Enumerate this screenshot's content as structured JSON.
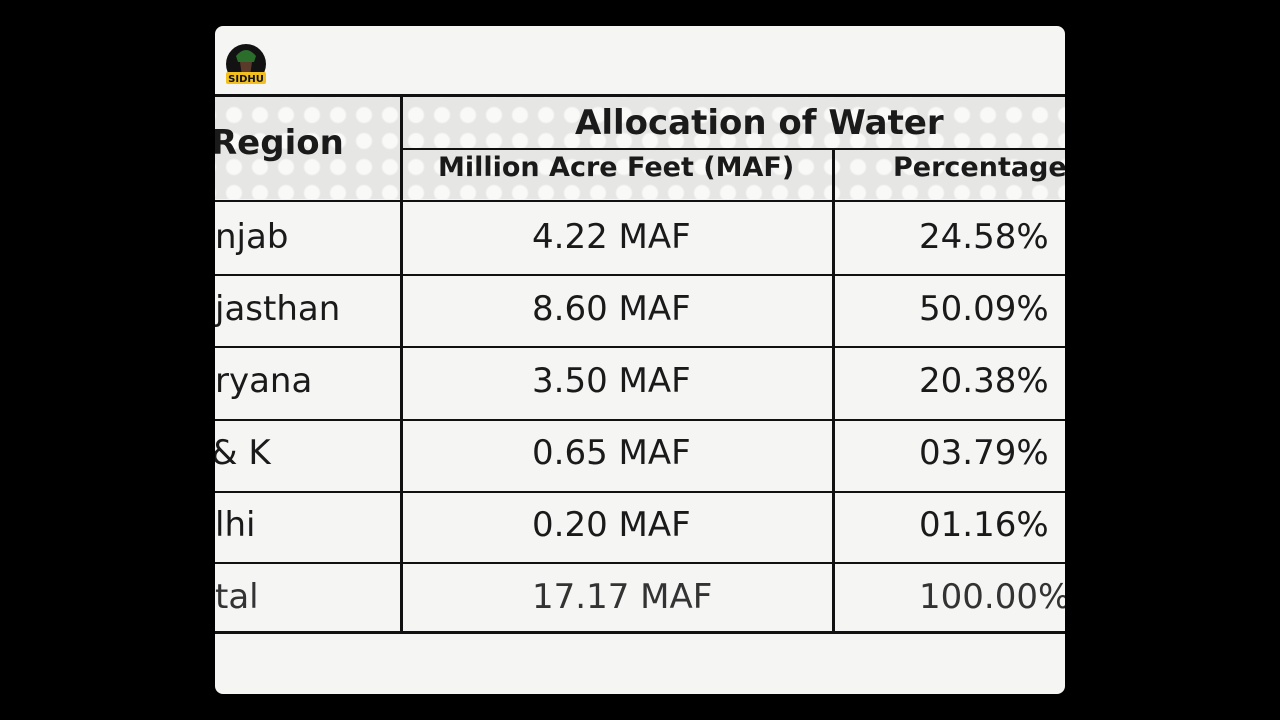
{
  "logo": {
    "text": "SIDHU"
  },
  "table": {
    "headers": {
      "region": "Region",
      "allocation": "Allocation of Water",
      "maf": "Million Acre Feet (MAF)",
      "percentage": "Percentage"
    },
    "rows": [
      {
        "region": "njab",
        "maf": "4.22 MAF",
        "percentage": "24.58%"
      },
      {
        "region": "jasthan",
        "maf": "8.60 MAF",
        "percentage": "50.09%"
      },
      {
        "region": "ryana",
        "maf": "3.50 MAF",
        "percentage": "20.38%"
      },
      {
        "region": "& K",
        "maf": "0.65 MAF",
        "percentage": "03.79%"
      },
      {
        "region": "lhi",
        "maf": "0.20 MAF",
        "percentage": "01.16%"
      },
      {
        "region": "tal",
        "maf": "17.17 MAF",
        "percentage": "100.00%"
      }
    ]
  }
}
